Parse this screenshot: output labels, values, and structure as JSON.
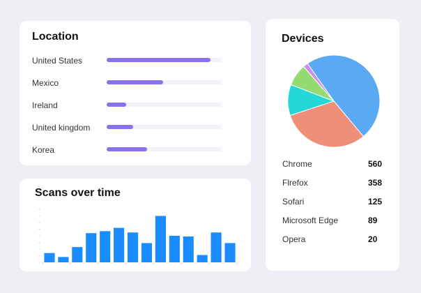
{
  "location": {
    "title": "Location",
    "items": [
      {
        "label": "United States",
        "fraction": 0.9
      },
      {
        "label": "Mexico",
        "fraction": 0.49
      },
      {
        "label": "Ireland",
        "fraction": 0.17
      },
      {
        "label": "United kingdom",
        "fraction": 0.23
      },
      {
        "label": "Korea",
        "fraction": 0.35
      }
    ],
    "bar_color": "#8a6ff0",
    "track_color": "#f2f2f8"
  },
  "scans": {
    "title": "Scans over time",
    "bar_color": "#1a8cff"
  },
  "devices": {
    "title": "Devices",
    "items": [
      {
        "name": "Chrome",
        "value": "560"
      },
      {
        "name": "Flrefox",
        "value": "358"
      },
      {
        "name": "Sofari",
        "value": "125"
      },
      {
        "name": "Microsoft Edge",
        "value": "89"
      },
      {
        "name": "Opera",
        "value": "20"
      }
    ]
  },
  "chart_data": [
    {
      "type": "pie",
      "labels": [
        "Chrome",
        "Flrefox",
        "Sofari",
        "Microsoft Edge",
        "Opera"
      ],
      "values": [
        560,
        358,
        125,
        89,
        20
      ],
      "colors": [
        "#5aa9f5",
        "#ef8f78",
        "#22d8d8",
        "#94dc72",
        "#cc8ef0"
      ],
      "start_angle_deg": 235
    },
    {
      "type": "bar",
      "values": [
        14,
        8,
        23,
        44,
        47,
        52,
        45,
        29,
        70,
        40,
        39,
        11,
        45,
        29
      ],
      "ylim": [
        0,
        80
      ],
      "grid": false,
      "color": "#1a8cff"
    }
  ]
}
